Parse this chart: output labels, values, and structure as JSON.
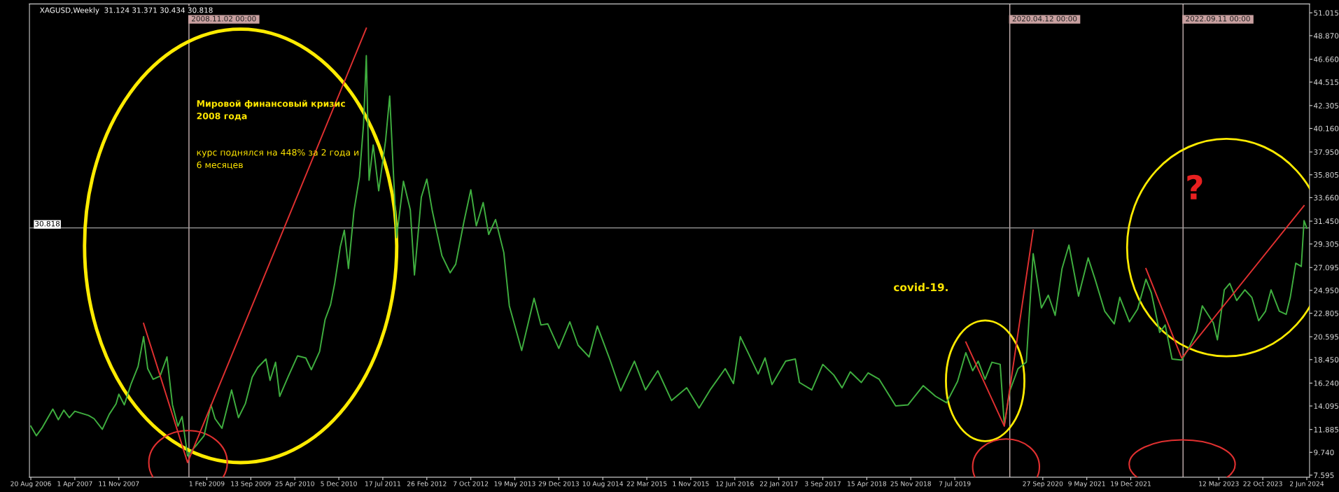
{
  "chart_data": {
    "type": "line",
    "title": "XAGUSD,Weekly  31.124 31.371 30.434 30.818",
    "xlim": [
      "2006-08-13",
      "2024-06-16"
    ],
    "ylim": [
      7.4,
      51.85
    ],
    "xticks": [
      {
        "value": "2006-08-20",
        "label": "20 Aug 2006"
      },
      {
        "value": "2007-04-01",
        "label": "1 Apr 2007"
      },
      {
        "value": "2007-11-11",
        "label": "11 Nov 2007"
      },
      {
        "value": "2009-02-01",
        "label": "1 Feb 2009"
      },
      {
        "value": "2009-09-13",
        "label": "13 Sep 2009"
      },
      {
        "value": "2010-04-25",
        "label": "25 Apr 2010"
      },
      {
        "value": "2010-12-05",
        "label": "5 Dec 2010"
      },
      {
        "value": "2011-07-17",
        "label": "17 Jul 2011"
      },
      {
        "value": "2012-02-26",
        "label": "26 Feb 2012"
      },
      {
        "value": "2012-10-07",
        "label": "7 Oct 2012"
      },
      {
        "value": "2013-05-19",
        "label": "19 May 2013"
      },
      {
        "value": "2013-12-29",
        "label": "29 Dec 2013"
      },
      {
        "value": "2014-08-10",
        "label": "10 Aug 2014"
      },
      {
        "value": "2015-03-22",
        "label": "22 Mar 2015"
      },
      {
        "value": "2015-11-01",
        "label": "1 Nov 2015"
      },
      {
        "value": "2016-06-12",
        "label": "12 Jun 2016"
      },
      {
        "value": "2017-01-22",
        "label": "22 Jan 2017"
      },
      {
        "value": "2017-09-03",
        "label": "3 Sep 2017"
      },
      {
        "value": "2018-04-15",
        "label": "15 Apr 2018"
      },
      {
        "value": "2018-11-25",
        "label": "25 Nov 2018"
      },
      {
        "value": "2019-07-07",
        "label": "7 Jul 2019"
      },
      {
        "value": "2020-09-27",
        "label": "27 Sep 2020"
      },
      {
        "value": "2021-05-09",
        "label": "9 May 2021"
      },
      {
        "value": "2021-12-19",
        "label": "19 Dec 2021"
      },
      {
        "value": "2023-03-12",
        "label": "12 Mar 2023"
      },
      {
        "value": "2023-10-22",
        "label": "22 Oct 2023"
      },
      {
        "value": "2024-06-02",
        "label": "2 Jun 2024"
      }
    ],
    "yticks": [
      7.595,
      {
        "value": 9.74,
        "label": "9.740"
      },
      11.885,
      14.095,
      {
        "value": 16.24,
        "label": "16.240"
      },
      {
        "value": 18.45,
        "label": "18.450"
      },
      20.595,
      22.805,
      {
        "value": 24.95,
        "label": "24.950"
      },
      27.095,
      29.305,
      {
        "value": 31.45,
        "label": "31.450"
      },
      {
        "value": 33.66,
        "label": "33.660"
      },
      35.805,
      {
        "value": 37.95,
        "label": "37.950"
      },
      {
        "value": 40.16,
        "label": "40.160"
      },
      42.305,
      44.515,
      {
        "value": 46.66,
        "label": "46.660"
      },
      {
        "value": 48.87,
        "label": "48.870"
      },
      51.015
    ],
    "grid": false,
    "series": [
      {
        "color": "#3fae3f",
        "x": [
          "2006-08-20",
          "2006-09-17",
          "2006-10-15",
          "2006-11-12",
          "2006-12-10",
          "2007-01-07",
          "2007-02-04",
          "2007-03-04",
          "2007-04-01",
          "2007-05-06",
          "2007-06-10",
          "2007-07-08",
          "2007-08-19",
          "2007-09-23",
          "2007-10-28",
          "2007-11-11",
          "2007-12-09",
          "2008-01-13",
          "2008-02-17",
          "2008-03-16",
          "2008-04-06",
          "2008-05-04",
          "2008-06-08",
          "2008-07-13",
          "2008-08-10",
          "2008-09-07",
          "2008-09-28",
          "2008-10-26",
          "2008-11-16",
          "2008-12-14",
          "2009-01-18",
          "2009-02-22",
          "2009-03-15",
          "2009-04-19",
          "2009-06-07",
          "2009-07-12",
          "2009-08-16",
          "2009-09-20",
          "2009-10-18",
          "2009-11-29",
          "2009-12-20",
          "2010-01-17",
          "2010-02-07",
          "2010-03-21",
          "2010-05-09",
          "2010-06-20",
          "2010-07-18",
          "2010-08-29",
          "2010-09-26",
          "2010-10-24",
          "2010-11-14",
          "2010-12-12",
          "2011-01-02",
          "2011-01-23",
          "2011-02-20",
          "2011-03-20",
          "2011-04-10",
          "2011-04-24",
          "2011-05-08",
          "2011-05-29",
          "2011-06-26",
          "2011-07-31",
          "2011-08-21",
          "2011-09-25",
          "2011-10-30",
          "2011-12-04",
          "2011-12-25",
          "2012-01-29",
          "2012-02-26",
          "2012-03-25",
          "2012-05-13",
          "2012-06-24",
          "2012-07-22",
          "2012-09-02",
          "2012-10-07",
          "2012-11-04",
          "2012-12-09",
          "2013-01-06",
          "2013-02-10",
          "2013-03-24",
          "2013-04-21",
          "2013-06-23",
          "2013-08-25",
          "2013-09-29",
          "2013-11-03",
          "2013-12-29",
          "2014-02-23",
          "2014-04-06",
          "2014-06-01",
          "2014-07-13",
          "2014-09-14",
          "2014-11-09",
          "2015-01-18",
          "2015-03-15",
          "2015-05-17",
          "2015-07-26",
          "2015-10-11",
          "2015-12-13",
          "2016-02-07",
          "2016-04-24",
          "2016-06-05",
          "2016-07-10",
          "2016-08-21",
          "2016-10-09",
          "2016-11-13",
          "2016-12-18",
          "2017-02-26",
          "2017-04-16",
          "2017-05-07",
          "2017-07-09",
          "2017-09-03",
          "2017-10-29",
          "2017-12-10",
          "2018-01-21",
          "2018-03-18",
          "2018-04-22",
          "2018-06-17",
          "2018-09-09",
          "2018-11-11",
          "2019-01-27",
          "2019-03-31",
          "2019-05-26",
          "2019-07-21",
          "2019-09-01",
          "2019-10-06",
          "2019-11-03",
          "2019-12-08",
          "2020-01-12",
          "2020-02-23",
          "2020-03-15",
          "2020-04-12",
          "2020-05-24",
          "2020-07-05",
          "2020-07-26",
          "2020-08-09",
          "2020-09-20",
          "2020-10-25",
          "2020-11-29",
          "2021-01-03",
          "2021-02-07",
          "2021-03-28",
          "2021-05-16",
          "2021-06-20",
          "2021-08-08",
          "2021-09-26",
          "2021-10-24",
          "2021-12-12",
          "2022-01-23",
          "2022-03-06",
          "2022-04-03",
          "2022-05-15",
          "2022-06-12",
          "2022-07-17",
          "2022-09-04",
          "2022-10-09",
          "2022-11-20",
          "2022-12-18",
          "2023-02-12",
          "2023-03-05",
          "2023-04-09",
          "2023-05-07",
          "2023-06-11",
          "2023-07-23",
          "2023-08-27",
          "2023-10-01",
          "2023-11-05",
          "2023-12-03",
          "2024-01-14",
          "2024-02-18",
          "2024-03-10",
          "2024-04-07",
          "2024-05-05",
          "2024-05-19",
          "2024-06-02"
        ],
        "values": [
          12.2,
          11.3,
          12.0,
          12.9,
          13.8,
          12.8,
          13.7,
          13.0,
          13.6,
          13.4,
          13.2,
          12.9,
          11.9,
          13.3,
          14.3,
          15.2,
          14.2,
          16.2,
          17.8,
          20.6,
          17.6,
          16.6,
          16.9,
          18.7,
          14.2,
          12.2,
          13.1,
          9.4,
          9.9,
          10.5,
          11.3,
          14.2,
          12.9,
          12.0,
          15.6,
          13.0,
          14.3,
          16.8,
          17.7,
          18.5,
          16.5,
          18.2,
          15.0,
          16.8,
          18.8,
          18.6,
          17.5,
          19.2,
          22.2,
          23.6,
          25.6,
          29.0,
          30.6,
          27.0,
          32.4,
          35.6,
          40.6,
          47.0,
          35.3,
          38.6,
          34.3,
          39.0,
          43.2,
          29.9,
          35.2,
          32.5,
          26.4,
          33.7,
          35.4,
          32.4,
          28.2,
          26.6,
          27.4,
          31.4,
          34.4,
          31.0,
          33.2,
          30.2,
          31.6,
          28.5,
          23.5,
          19.3,
          24.2,
          21.7,
          21.8,
          19.5,
          22.0,
          19.8,
          18.7,
          21.6,
          18.5,
          15.5,
          18.3,
          15.6,
          17.4,
          14.6,
          15.8,
          13.9,
          15.6,
          17.6,
          16.2,
          20.6,
          19.0,
          17.1,
          18.6,
          16.1,
          18.3,
          18.5,
          16.3,
          15.6,
          18.0,
          17.0,
          15.8,
          17.3,
          16.3,
          17.2,
          16.6,
          14.1,
          14.2,
          16.0,
          15.0,
          14.4,
          16.4,
          19.1,
          17.4,
          18.3,
          16.6,
          18.2,
          18.0,
          12.3,
          15.5,
          17.6,
          18.2,
          24.4,
          28.4,
          23.3,
          24.5,
          22.6,
          27.0,
          29.2,
          24.4,
          28.0,
          26.0,
          23.0,
          21.8,
          24.3,
          22.0,
          23.2,
          26.0,
          24.7,
          21.0,
          21.7,
          18.5,
          18.4,
          19.5,
          21.1,
          23.5,
          21.9,
          20.3,
          25.0,
          25.6,
          24.0,
          25.0,
          24.3,
          22.1,
          23.0,
          25.0,
          23.0,
          22.7,
          24.3,
          27.5,
          27.2,
          31.5,
          30.8
        ]
      },
      {
        "color": "#e03030",
        "x": [
          "2008-03-16",
          "2008-10-26",
          "2011-04-24"
        ],
        "values": [
          21.85,
          8.78,
          49.57
        ]
      },
      {
        "color": "#e03030",
        "x": [
          "2019-09-01",
          "2020-03-15",
          "2020-08-09"
        ],
        "values": [
          20.1,
          12.2,
          30.6
        ]
      },
      {
        "color": "#e03030",
        "x": [
          "2022-03-06",
          "2022-09-04",
          "2024-05-19"
        ],
        "values": [
          27.0,
          18.6,
          32.9
        ]
      }
    ],
    "ref_lines": [
      {
        "axis": "x",
        "value": "2008-11-02",
        "label": "2008.11.02 00:00",
        "color": "#c8b4b4"
      },
      {
        "axis": "x",
        "value": "2020-04-12",
        "label": "2020.04.12 00:00",
        "color": "#c8b4b4"
      },
      {
        "axis": "x",
        "value": "2022-09-11",
        "label": "2022.09.11 00:00",
        "color": "#c8b4b4"
      },
      {
        "axis": "y",
        "value": 30.818,
        "label": "30.818",
        "color": "#a0a0a0"
      }
    ],
    "annotations": [
      "Мировой финансовый кризис\n2008 года",
      "курс поднялся на 448% за 2 года и\n6 месяцев",
      "covid-19.",
      "?"
    ]
  }
}
